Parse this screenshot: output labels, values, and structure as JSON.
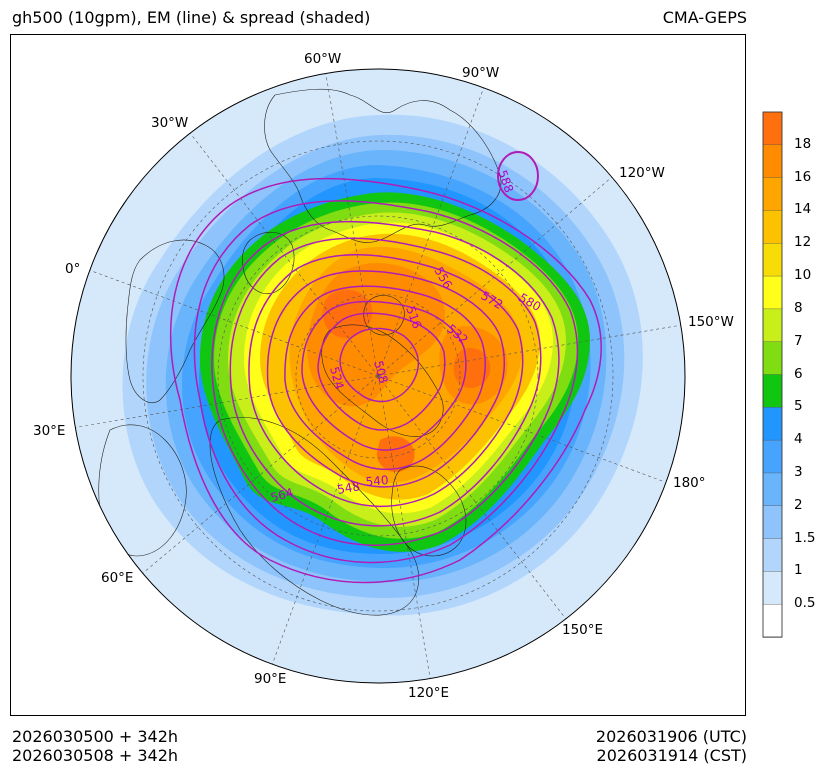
{
  "header": {
    "title_left": "gh500 (10gpm), EM (line) & spread (shaded)",
    "title_right": "CMA-GEPS"
  },
  "footer": {
    "init_utc": "2026030500 + 342h",
    "init_cst": "2026030508 + 342h",
    "valid_utc": "2026031906 (UTC)",
    "valid_cst": "2026031914 (CST)"
  },
  "map": {
    "projection": "north-polar-stereographic",
    "longitude_labels": [
      "60°W",
      "90°W",
      "30°W",
      "120°W",
      "0°",
      "150°W",
      "30°E",
      "180°",
      "60°E",
      "150°E",
      "90°E",
      "120°E"
    ],
    "contour_labels": [
      "588",
      "556",
      "572",
      "580",
      "516",
      "532",
      "524",
      "508",
      "540",
      "548",
      "564"
    ],
    "contour_units": "10gpm",
    "shading": "ensemble spread"
  },
  "colorbar": {
    "ticks": [
      "18",
      "16",
      "14",
      "12",
      "10",
      "8",
      "7",
      "6",
      "5",
      "4",
      "3",
      "2",
      "1.5",
      "1",
      "0.5"
    ],
    "colors_top_to_bottom": [
      "#ff6f0d",
      "#ff8c00",
      "#ffa500",
      "#fcc200",
      "#f7dc08",
      "#ffff1a",
      "#c8ef1a",
      "#7fdd12",
      "#11c611",
      "#2196fe",
      "#46a4fe",
      "#69b4fb",
      "#8ec4fb",
      "#b2d6fb",
      "#d6e9fb",
      "#ffffff"
    ]
  },
  "styles": {
    "contour_color": "#b01cb8",
    "contour_label_color": "#b400c8",
    "grid_color": "#555555"
  }
}
